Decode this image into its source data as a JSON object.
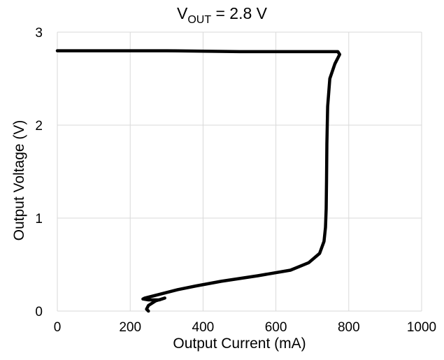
{
  "chart_data": {
    "type": "line",
    "title": "= 2.8 V",
    "title_var": "V",
    "title_sub": "OUT",
    "xlabel": "Output Current (mA)",
    "ylabel": "Output Voltage (V)",
    "xlim": [
      0,
      1000
    ],
    "ylim": [
      0,
      3
    ],
    "xticks": [
      0,
      200,
      400,
      600,
      800,
      1000
    ],
    "yticks": [
      0,
      1,
      2,
      3
    ],
    "grid": true,
    "series": [
      {
        "color": "#000000",
        "x": [
          0,
          100,
          300,
          500,
          700,
          770,
          775,
          762,
          748,
          742,
          740,
          739,
          738,
          736,
          732,
          720,
          690,
          640,
          550,
          450,
          380,
          330,
          300,
          270,
          250,
          240,
          235,
          250,
          280,
          295,
          270,
          250,
          245,
          250
        ],
        "y": [
          2.8,
          2.8,
          2.8,
          2.79,
          2.79,
          2.79,
          2.76,
          2.66,
          2.5,
          2.2,
          1.8,
          1.4,
          1.1,
          0.9,
          0.75,
          0.62,
          0.52,
          0.44,
          0.38,
          0.32,
          0.27,
          0.23,
          0.2,
          0.17,
          0.15,
          0.14,
          0.13,
          0.12,
          0.12,
          0.14,
          0.11,
          0.06,
          0.02,
          0.0
        ]
      }
    ]
  }
}
